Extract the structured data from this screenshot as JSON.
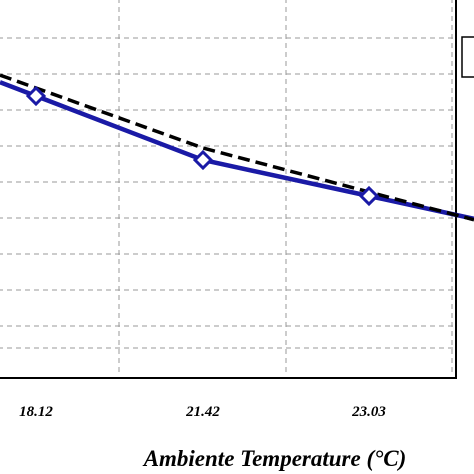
{
  "chart_data": {
    "type": "line",
    "xlabel": "Ambiente Temperature (°C)",
    "ylabel": "",
    "title": "",
    "categories": [
      "18.12",
      "21.42",
      "23.03"
    ],
    "grid": true,
    "legend_position": "top-right",
    "series": [
      {
        "name": "",
        "style": "solid",
        "color": "#1a1aa6",
        "marker": "diamond",
        "values": [
          0.7,
          0.54,
          0.45
        ]
      },
      {
        "name": "",
        "style": "dashed",
        "color": "#000000",
        "marker": "none",
        "values": [
          0.72,
          0.57,
          0.46
        ]
      }
    ],
    "ylim": [
      0,
      1
    ]
  }
}
